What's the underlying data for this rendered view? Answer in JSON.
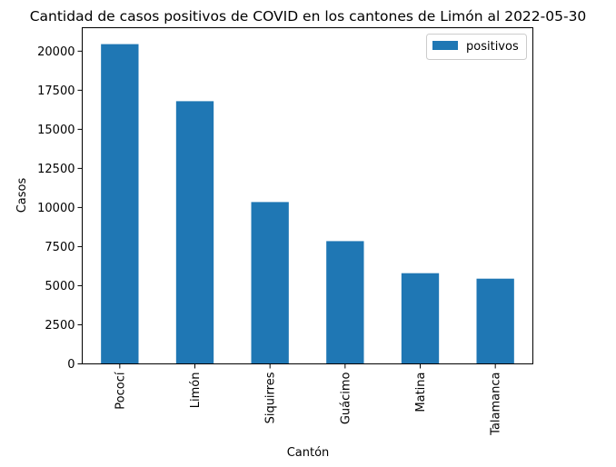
{
  "chart_data": {
    "type": "bar",
    "title": "Cantidad de casos positivos de COVID en los cantones de Limón al 2022-05-30",
    "xlabel": "Cantón",
    "ylabel": "Casos",
    "categories": [
      "Pococí",
      "Limón",
      "Siquirres",
      "Guácimo",
      "Matina",
      "Talamanca"
    ],
    "series": [
      {
        "name": "positivos",
        "values": [
          20450,
          16800,
          10350,
          7850,
          5800,
          5450
        ],
        "color": "#1f77b4"
      }
    ],
    "ylim": [
      0,
      21500
    ],
    "yticks": [
      0,
      2500,
      5000,
      7500,
      10000,
      12500,
      15000,
      17500,
      20000
    ],
    "ytick_labels": [
      "0",
      "2500",
      "5000",
      "7500",
      "10000",
      "12500",
      "15000",
      "17500",
      "20000"
    ],
    "grid": false,
    "legend_position": "top-right"
  }
}
